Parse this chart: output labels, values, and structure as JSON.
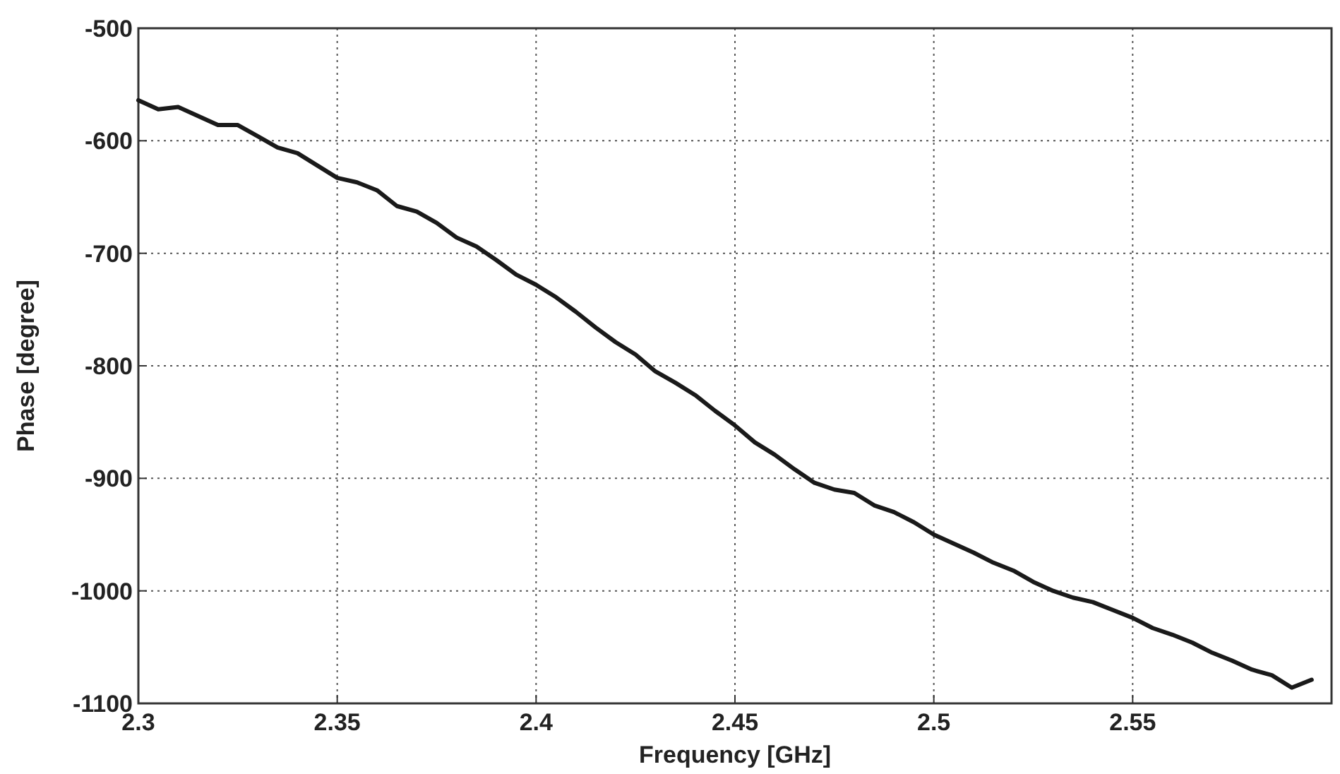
{
  "chart_data": {
    "type": "line",
    "xlabel": "Frequency [GHz]",
    "ylabel": "Phase [degree]",
    "xlim": [
      2.3,
      2.6
    ],
    "ylim": [
      -1100,
      -500
    ],
    "xticks": [
      2.3,
      2.35,
      2.4,
      2.45,
      2.5,
      2.55
    ],
    "yticks": [
      -500,
      -600,
      -700,
      -800,
      -900,
      -1000,
      -1100
    ],
    "grid": true,
    "line_style": "solid",
    "marker": "none",
    "series": [
      {
        "color": "#1a1a1a",
        "x": [
          2.3,
          2.305,
          2.31,
          2.315,
          2.32,
          2.325,
          2.33,
          2.335,
          2.34,
          2.345,
          2.35,
          2.355,
          2.36,
          2.365,
          2.37,
          2.375,
          2.38,
          2.385,
          2.39,
          2.395,
          2.4,
          2.405,
          2.41,
          2.415,
          2.42,
          2.425,
          2.43,
          2.435,
          2.44,
          2.445,
          2.45,
          2.455,
          2.46,
          2.465,
          2.47,
          2.475,
          2.48,
          2.485,
          2.49,
          2.495,
          2.5,
          2.505,
          2.51,
          2.515,
          2.52,
          2.525,
          2.53,
          2.535,
          2.54,
          2.545,
          2.55,
          2.555,
          2.56,
          2.565,
          2.57,
          2.575,
          2.58,
          2.585,
          2.59,
          2.595
        ],
        "values": [
          -564,
          -572,
          -570,
          -578,
          -586,
          -586,
          -596,
          -606,
          -611,
          -622,
          -633,
          -637,
          -644,
          -658,
          -663,
          -673,
          -686,
          -694,
          -706,
          -719,
          -728,
          -739,
          -752,
          -766,
          -779,
          -790,
          -805,
          -815,
          -826,
          -840,
          -853,
          -868,
          -879,
          -892,
          -904,
          -910,
          -913,
          -924,
          -930,
          -939,
          -950,
          -958,
          -966,
          -975,
          -982,
          -992,
          -1000,
          -1006,
          -1010,
          -1017,
          -1024,
          -1033,
          -1039,
          -1046,
          -1055,
          -1062,
          -1070,
          -1075,
          -1086,
          -1079
        ]
      }
    ]
  }
}
